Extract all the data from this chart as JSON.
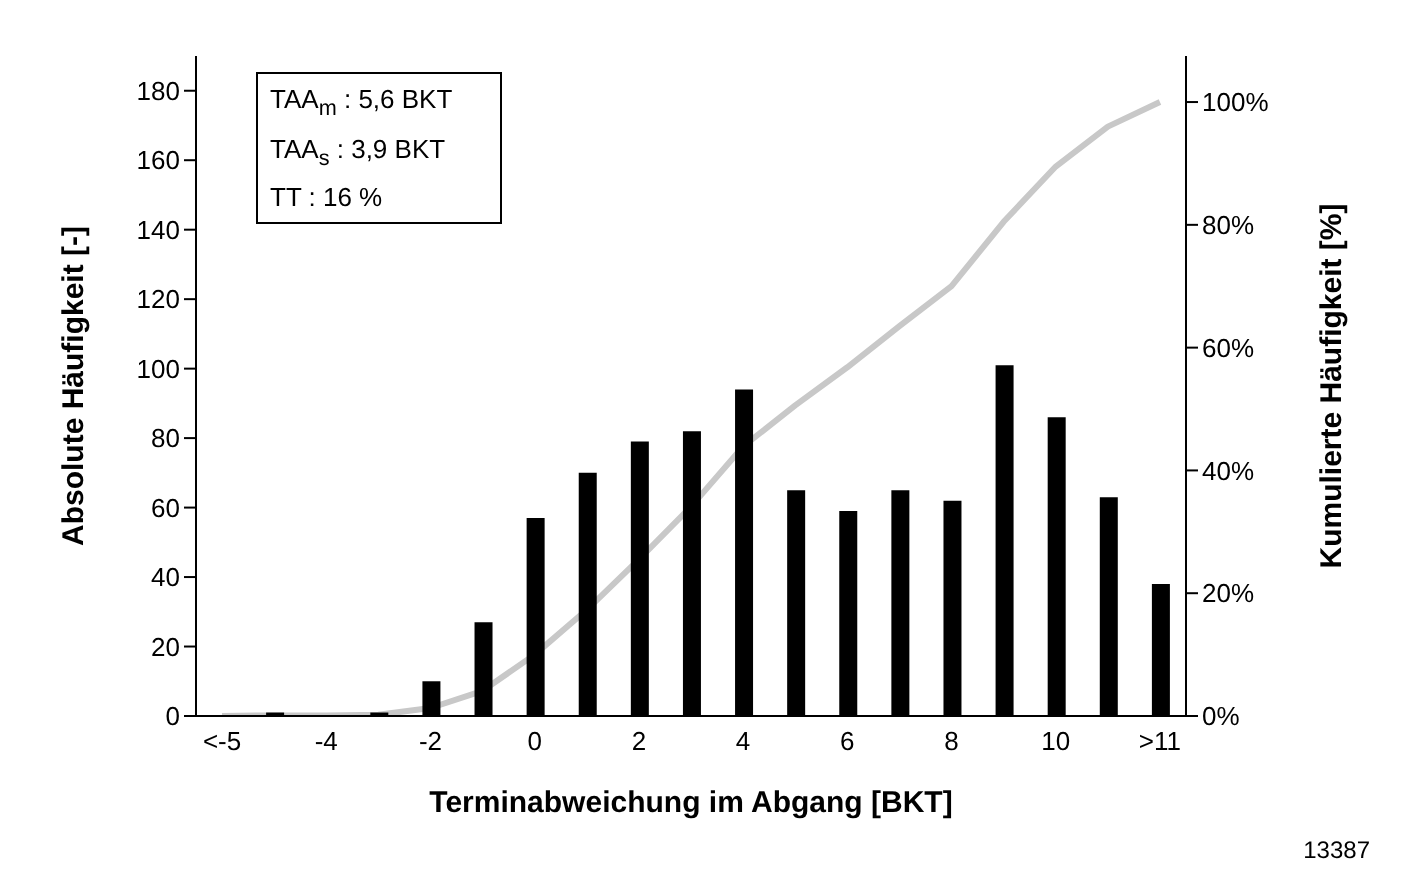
{
  "chart_data": {
    "type": "bar",
    "xlabel": "Terminabweichung im Abgang [BKT]",
    "ylabel": "Absolute Häufigkeit [-]",
    "y2label": "Kumulierte Häufigkeit [%]",
    "categories": [
      "<-5",
      null,
      "-4",
      null,
      "-2",
      null,
      "0",
      null,
      "2",
      null,
      "4",
      null,
      "6",
      null,
      "8",
      null,
      "10",
      null,
      ">11"
    ],
    "series": [
      {
        "color": "#000000",
        "values": [
          0,
          1,
          0,
          1,
          10,
          27,
          57,
          70,
          79,
          82,
          94,
          65,
          59,
          65,
          62,
          101,
          86,
          63,
          38
        ]
      },
      {
        "type": "line",
        "axis": "y2",
        "color": "#c8c8c8",
        "values": [
          0,
          0.1,
          0.1,
          0.2,
          1.3,
          4.1,
          10,
          17.3,
          25.5,
          34.1,
          43.9,
          50.6,
          56.8,
          63.5,
          70,
          80.5,
          89.5,
          96,
          100
        ]
      }
    ],
    "ylim": [
      0,
      190
    ],
    "yticks": [
      0,
      20,
      40,
      60,
      80,
      100,
      120,
      140,
      160,
      180
    ],
    "y2lim": [
      0,
      107.5
    ],
    "y2ticks": [
      {
        "value": 0,
        "label": "0%"
      },
      {
        "value": 20,
        "label": "20%"
      },
      {
        "value": 40,
        "label": "40%"
      },
      {
        "value": 60,
        "label": "60%"
      },
      {
        "value": 80,
        "label": "80%"
      },
      {
        "value": 100,
        "label": "100%"
      }
    ],
    "grid": false,
    "legend": false,
    "marker": "none",
    "annotations": [
      "TAA$_{m}$ : 5,6 BKT",
      "TAA$_{s}$ : 3,9 BKT",
      "TT : 16 %",
      "13387"
    ]
  }
}
